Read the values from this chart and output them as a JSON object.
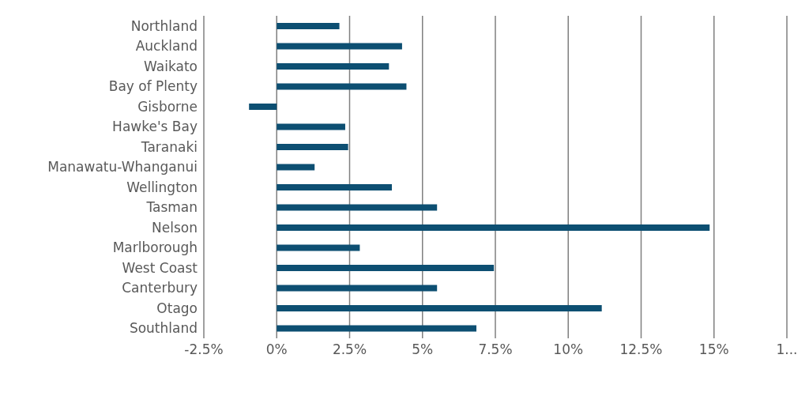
{
  "chart_data": {
    "type": "bar",
    "orientation": "horizontal",
    "categories": [
      "Northland",
      "Auckland",
      "Waikato",
      "Bay of Plenty",
      "Gisborne",
      "Hawke's Bay",
      "Taranaki",
      "Manawatu-Whanganui",
      "Wellington",
      "Tasman",
      "Nelson",
      "Marlborough",
      "West Coast",
      "Canterbury",
      "Otago",
      "Southland"
    ],
    "values": [
      2.15,
      4.3,
      3.85,
      4.45,
      -0.95,
      2.35,
      2.45,
      1.3,
      3.95,
      5.5,
      14.85,
      2.85,
      7.45,
      5.5,
      11.15,
      6.85
    ],
    "color": "#0d4f72",
    "xlim": [
      -2.5,
      17.5
    ],
    "xticks": [
      {
        "value": -2.5,
        "label": "-2.5%"
      },
      {
        "value": 0,
        "label": "0%"
      },
      {
        "value": 2.5,
        "label": "2.5%"
      },
      {
        "value": 5,
        "label": "5%"
      },
      {
        "value": 7.5,
        "label": "7.5%"
      },
      {
        "value": 10,
        "label": "10%"
      },
      {
        "value": 12.5,
        "label": "12.5%"
      },
      {
        "value": 15,
        "label": "15%"
      },
      {
        "value": 17.5,
        "label": "1..."
      }
    ],
    "grid": "x",
    "legend": false
  }
}
